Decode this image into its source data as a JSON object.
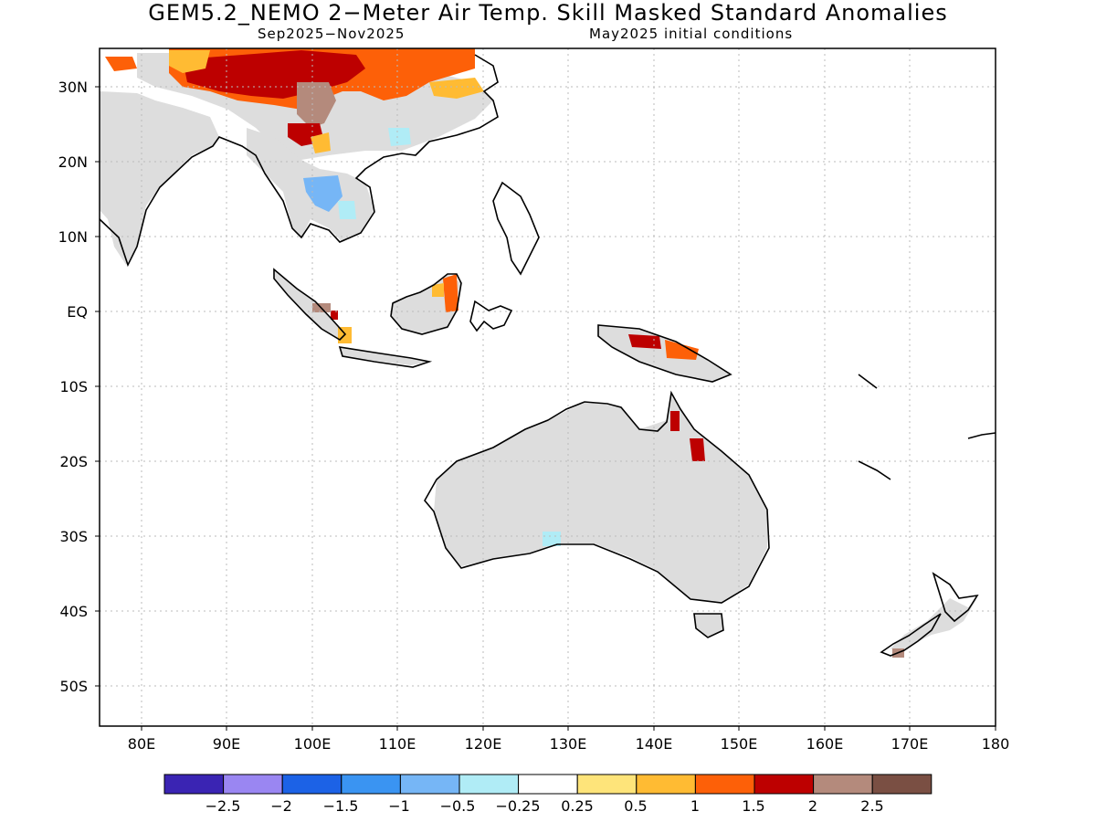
{
  "title": "GEM5.2_NEMO 2−Meter Air Temp. Skill Masked Standard Anomalies",
  "subtitle_left": "Sep2025−Nov2025",
  "subtitle_right": "May2025 initial conditions",
  "lon_labels": [
    "80E",
    "90E",
    "100E",
    "110E",
    "120E",
    "130E",
    "140E",
    "150E",
    "160E",
    "170E",
    "180"
  ],
  "lat_labels": [
    "30N",
    "20N",
    "10N",
    "EQ",
    "10S",
    "20S",
    "30S",
    "40S",
    "50S"
  ],
  "colorbar": {
    "colors": [
      "#3a24b3",
      "#9a86f2",
      "#1c62e6",
      "#3a94f2",
      "#76b6f6",
      "#b0ecf6",
      "#ffffff",
      "#fee47a",
      "#ffbb33",
      "#fd6008",
      "#bd0000",
      "#b48a7c",
      "#7a4f43"
    ],
    "labels": [
      "−2.5",
      "−2",
      "−1.5",
      "−1",
      "−0.5",
      "−0.25",
      "0.25",
      "0.5",
      "1",
      "1.5",
      "2",
      "2.5"
    ]
  },
  "mask_color": "#dddddd",
  "coast_color": "#000000"
}
